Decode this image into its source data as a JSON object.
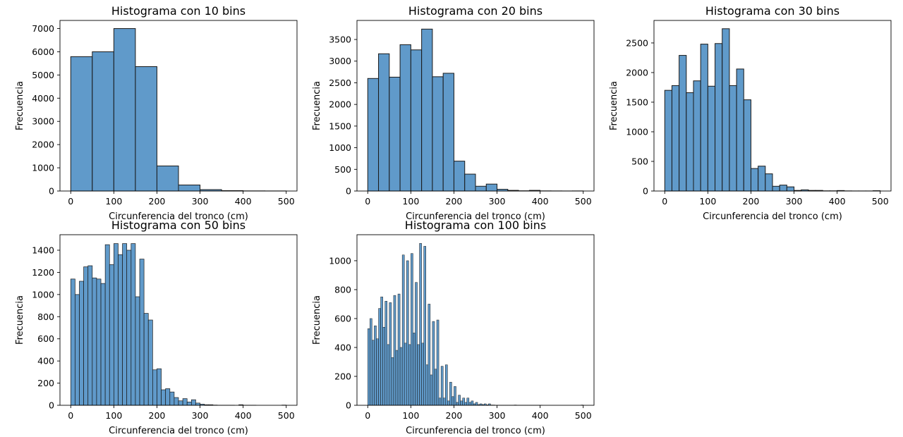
{
  "figure": {
    "background": "#ffffff",
    "bar_color": "#4f8fc4",
    "bar_edge": "#1a1a1a"
  },
  "chart_data": [
    {
      "type": "bar",
      "title": "Histograma con 10 bins",
      "xlabel": "Circunferencia del tronco (cm)",
      "ylabel": "Frecuencia",
      "bin_edges_range": [
        0,
        500
      ],
      "xlim": [
        -25,
        525
      ],
      "ylim": [
        0,
        7350
      ],
      "xticks": [
        0,
        100,
        200,
        300,
        400,
        500
      ],
      "yticks": [
        0,
        1000,
        2000,
        3000,
        4000,
        5000,
        6000,
        7000
      ],
      "values": [
        5790,
        6000,
        7000,
        5360,
        1080,
        260,
        60,
        15,
        5,
        3
      ]
    },
    {
      "type": "bar",
      "title": "Histograma con 20 bins",
      "xlabel": "Circunferencia del tronco (cm)",
      "ylabel": "Frecuencia",
      "bin_edges_range": [
        0,
        500
      ],
      "xlim": [
        -25,
        525
      ],
      "ylim": [
        0,
        3940
      ],
      "xticks": [
        0,
        100,
        200,
        300,
        400,
        500
      ],
      "yticks": [
        0,
        500,
        1000,
        1500,
        2000,
        2500,
        3000,
        3500
      ],
      "values": [
        2600,
        3170,
        2630,
        3380,
        3260,
        3740,
        2640,
        2720,
        690,
        390,
        110,
        160,
        40,
        15,
        5,
        15,
        3,
        2,
        1,
        2
      ]
    },
    {
      "type": "bar",
      "title": "Histograma con 30 bins",
      "xlabel": "Circunferencia del tronco (cm)",
      "ylabel": "Frecuencia",
      "bin_edges_range": [
        0,
        500
      ],
      "xlim": [
        -25,
        525
      ],
      "ylim": [
        0,
        2880
      ],
      "xticks": [
        0,
        100,
        200,
        300,
        400,
        500
      ],
      "yticks": [
        0,
        500,
        1000,
        1500,
        2000,
        2500
      ],
      "values": [
        1700,
        1780,
        2290,
        1660,
        1860,
        2480,
        1770,
        2490,
        2740,
        1780,
        2060,
        1540,
        380,
        420,
        290,
        80,
        100,
        70,
        10,
        20,
        10,
        10,
        3,
        3,
        8,
        2,
        1,
        1,
        1,
        5
      ]
    },
    {
      "type": "bar",
      "title": "Histograma con 50 bins",
      "xlabel": "Circunferencia del tronco (cm)",
      "ylabel": "Frecuencia",
      "bin_edges_range": [
        0,
        500
      ],
      "xlim": [
        -25,
        525
      ],
      "ylim": [
        0,
        1540
      ],
      "xticks": [
        0,
        100,
        200,
        300,
        400,
        500
      ],
      "yticks": [
        0,
        200,
        400,
        600,
        800,
        1000,
        1200,
        1400
      ],
      "values": [
        1140,
        1000,
        1120,
        1250,
        1260,
        1150,
        1140,
        1100,
        1450,
        1270,
        1460,
        1360,
        1460,
        1400,
        1460,
        980,
        1320,
        830,
        770,
        320,
        330,
        140,
        150,
        120,
        70,
        40,
        60,
        30,
        50,
        20,
        10,
        5,
        5,
        2,
        1,
        1,
        1,
        1,
        0,
        5,
        1,
        1,
        1,
        0,
        0,
        0,
        0,
        0,
        0,
        2
      ]
    },
    {
      "type": "bar",
      "title": "Histograma con 100 bins",
      "xlabel": "Circunferencia del tronco (cm)",
      "ylabel": "Frecuencia",
      "bin_edges_range": [
        0,
        500
      ],
      "xlim": [
        -25,
        525
      ],
      "ylim": [
        0,
        1180
      ],
      "xticks": [
        0,
        100,
        200,
        300,
        400,
        500
      ],
      "yticks": [
        0,
        200,
        400,
        600,
        800,
        1000
      ],
      "values": [
        530,
        600,
        450,
        550,
        460,
        670,
        750,
        540,
        720,
        420,
        710,
        330,
        760,
        380,
        770,
        400,
        1040,
        430,
        1000,
        420,
        1050,
        500,
        850,
        420,
        1120,
        430,
        1100,
        280,
        700,
        210,
        580,
        250,
        590,
        50,
        270,
        50,
        280,
        30,
        160,
        60,
        130,
        20,
        70,
        30,
        50,
        20,
        50,
        20,
        30,
        10,
        20,
        5,
        10,
        5,
        10,
        3,
        10,
        2,
        2,
        1,
        1,
        1,
        1,
        1,
        1,
        1,
        1,
        1,
        2,
        1,
        1,
        1,
        1,
        1,
        1,
        1,
        1,
        1,
        1,
        1,
        1,
        0,
        0,
        0,
        0,
        0,
        0,
        0,
        0,
        0,
        0,
        0,
        0,
        0,
        0,
        0,
        0,
        0,
        0,
        2
      ]
    }
  ]
}
